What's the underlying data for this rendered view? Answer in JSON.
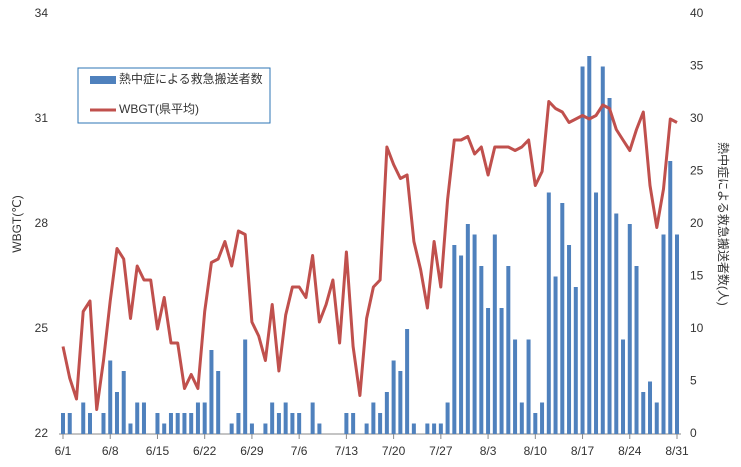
{
  "chart_data": {
    "type": "combo",
    "y_axis_label": "WBGT(℃)",
    "y2_axis_label": "熱中症による救急搬送者数(人)",
    "categories": [
      "6/1",
      null,
      null,
      null,
      null,
      null,
      null,
      "6/8",
      null,
      null,
      null,
      null,
      null,
      null,
      "6/15",
      null,
      null,
      null,
      null,
      null,
      null,
      "6/22",
      null,
      null,
      null,
      null,
      null,
      null,
      "6/29",
      null,
      null,
      null,
      null,
      null,
      null,
      "7/6",
      null,
      null,
      null,
      null,
      null,
      null,
      "7/13",
      null,
      null,
      null,
      null,
      null,
      null,
      "7/20",
      null,
      null,
      null,
      null,
      null,
      null,
      "7/27",
      null,
      null,
      null,
      null,
      null,
      null,
      "8/3",
      null,
      null,
      null,
      null,
      null,
      null,
      "8/10",
      null,
      null,
      null,
      null,
      null,
      null,
      "8/17",
      null,
      null,
      null,
      null,
      null,
      null,
      "8/24",
      null,
      null,
      null,
      null,
      null,
      null,
      "8/31"
    ],
    "ylim": [
      22,
      34
    ],
    "yticks": [
      22,
      25,
      28,
      31,
      34
    ],
    "y2lim": [
      0,
      40
    ],
    "y2ticks": [
      0,
      5,
      10,
      15,
      20,
      25,
      30,
      35,
      40
    ],
    "legend": "upper left",
    "series": [
      {
        "name": "熱中症による救急搬送者数",
        "type": "bar",
        "axis": "y2",
        "color": "#4f81bd",
        "values": [
          2,
          2,
          0,
          3,
          2,
          0,
          2,
          7,
          4,
          6,
          1,
          3,
          3,
          0,
          2,
          1,
          2,
          2,
          2,
          2,
          3,
          3,
          8,
          6,
          0,
          1,
          2,
          9,
          1,
          0,
          1,
          3,
          2,
          3,
          2,
          2,
          0,
          3,
          1,
          0,
          0,
          0,
          2,
          2,
          0,
          1,
          3,
          2,
          4,
          7,
          6,
          10,
          1,
          0,
          1,
          1,
          1,
          3,
          18,
          17,
          20,
          19,
          16,
          12,
          19,
          12,
          16,
          9,
          3,
          9,
          2,
          3,
          23,
          15,
          22,
          18,
          14,
          35,
          36,
          23,
          35,
          32,
          21,
          9,
          20,
          16,
          4,
          5,
          3,
          19,
          26,
          19
        ]
      },
      {
        "name": "WBGT(県平均)",
        "type": "line",
        "axis": "y",
        "color": "#c0504d",
        "values": [
          24.5,
          23.6,
          23.0,
          25.5,
          25.8,
          22.7,
          24.1,
          25.8,
          27.3,
          27.0,
          25.3,
          26.8,
          26.4,
          26.4,
          25.0,
          25.9,
          24.6,
          24.6,
          23.3,
          23.7,
          23.3,
          25.5,
          26.9,
          27.0,
          27.5,
          26.8,
          27.8,
          27.7,
          25.2,
          24.8,
          24.1,
          25.7,
          23.8,
          25.4,
          26.2,
          26.2,
          25.9,
          27.1,
          25.2,
          25.7,
          26.4,
          24.6,
          27.2,
          24.5,
          23.1,
          25.3,
          26.2,
          26.4,
          30.2,
          29.7,
          29.3,
          29.4,
          27.5,
          26.7,
          25.6,
          27.5,
          26.2,
          28.7,
          30.4,
          30.4,
          30.5,
          30.0,
          30.2,
          29.4,
          30.2,
          30.2,
          30.2,
          30.1,
          30.2,
          30.4,
          29.1,
          29.5,
          31.5,
          31.3,
          31.2,
          30.9,
          31.0,
          31.1,
          31.0,
          31.1,
          31.4,
          31.3,
          30.7,
          30.4,
          30.1,
          30.7,
          31.2,
          29.1,
          27.9,
          29.0,
          31.0,
          30.9
        ]
      }
    ]
  }
}
